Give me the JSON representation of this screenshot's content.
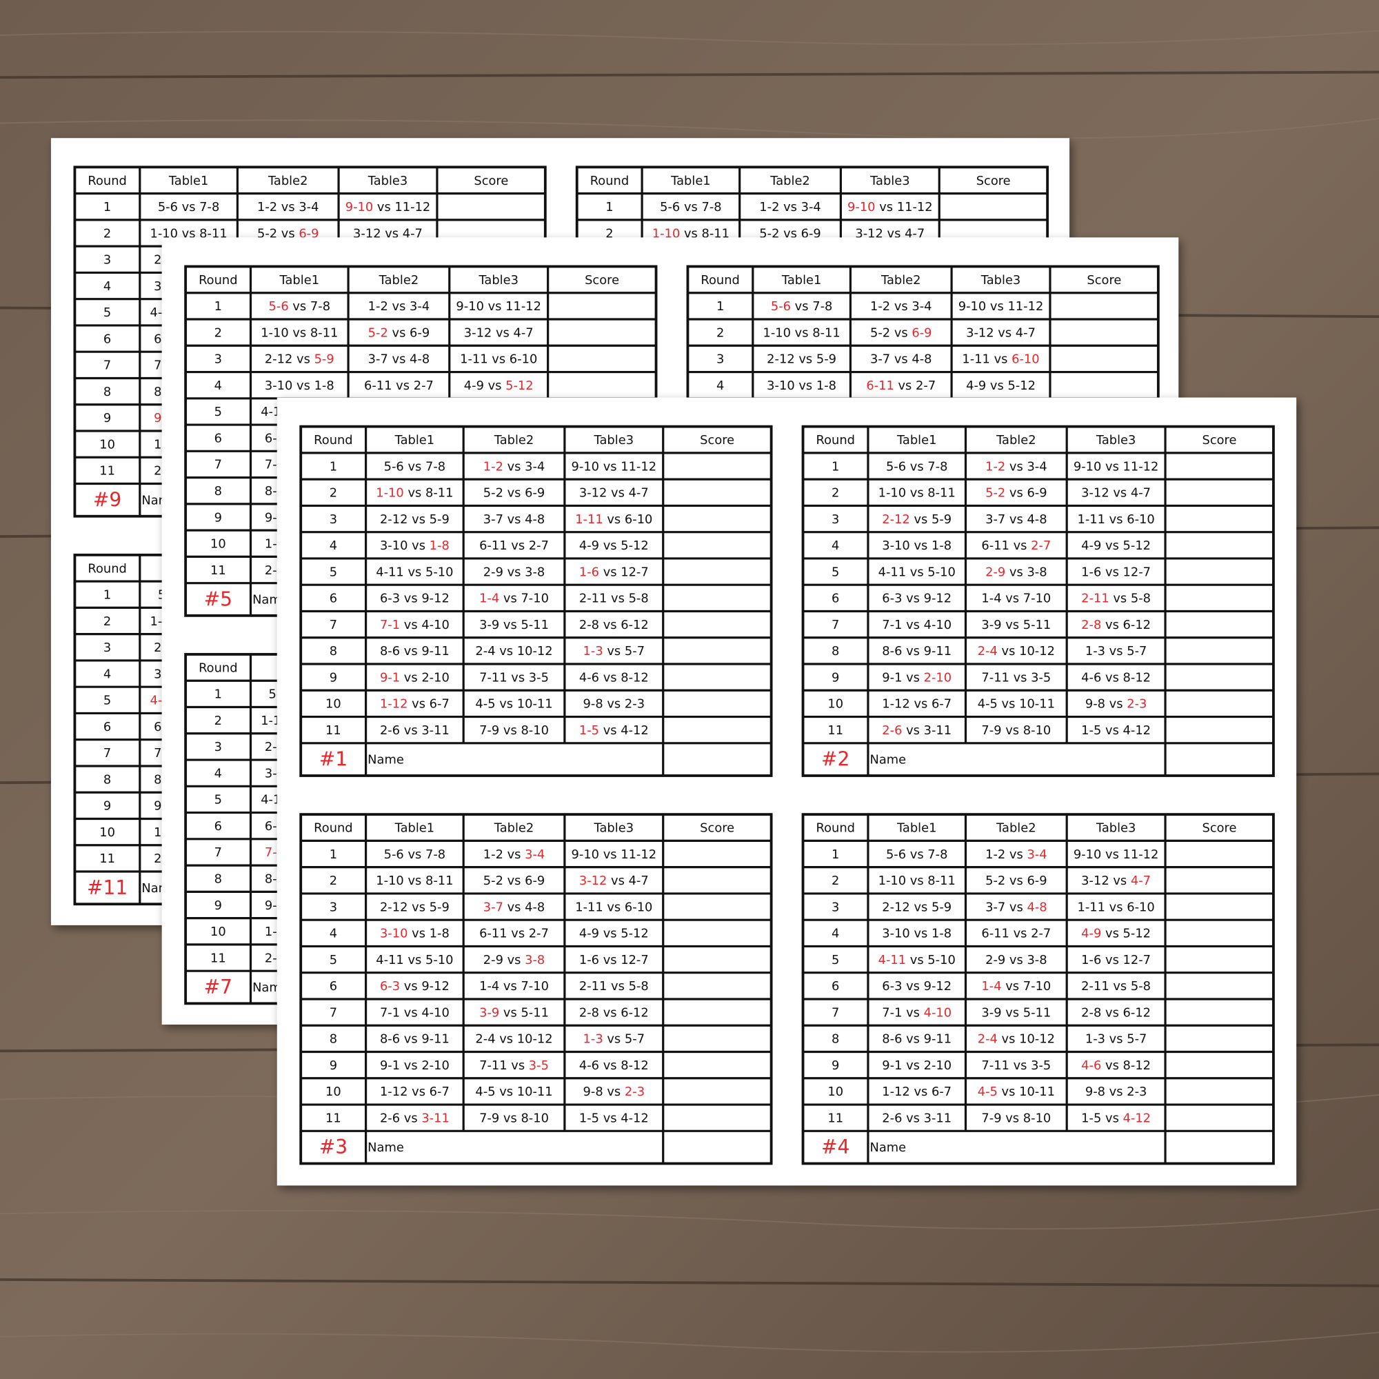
{
  "schedule": {
    "header": [
      "Round",
      "Table1",
      "Table2",
      "Table3",
      "Score"
    ],
    "rows": [
      [
        1,
        "5-6 vs 7-8",
        "1-2 vs 3-4",
        "9-10 vs 11-12"
      ],
      [
        2,
        "1-10 vs 8-11",
        "5-2 vs 6-9",
        "3-12 vs 4-7"
      ],
      [
        3,
        "2-12 vs 5-9",
        "3-7 vs 4-8",
        "1-11 vs 6-10"
      ],
      [
        4,
        "3-10 vs 1-8",
        "6-11 vs 2-7",
        "4-9 vs 5-12"
      ],
      [
        5,
        "4-11 vs 5-10",
        "2-9 vs 3-8",
        "1-6 vs 12-7"
      ],
      [
        6,
        "6-3 vs 9-12",
        "1-4 vs 7-10",
        "2-11 vs 5-8"
      ],
      [
        7,
        "7-1 vs 4-10",
        "3-9 vs 5-11",
        "2-8 vs 6-12"
      ],
      [
        8,
        "8-6 vs 9-11",
        "2-4 vs 10-12",
        "1-3 vs 5-7"
      ],
      [
        9,
        "9-1 vs 2-10",
        "7-11 vs 3-5",
        "4-6 vs 8-12"
      ],
      [
        10,
        "1-12 vs 6-7",
        "4-5 vs 10-11",
        "9-8 vs 2-3"
      ],
      [
        11,
        "2-6 vs 3-11",
        "7-9 vs 8-10",
        "1-5 vs 4-12"
      ]
    ],
    "name_label": "Name"
  },
  "highlight_color": "#e8262b",
  "sheets": [
    {
      "cards": [
        {
          "label": "#9",
          "player": 9
        },
        {
          "label": null,
          "player": 10
        },
        {
          "label": "#11",
          "player": 11
        }
      ]
    },
    {
      "cards": [
        {
          "label": "#5",
          "player": 5
        },
        {
          "label": null,
          "player": 6
        },
        {
          "label": "#7",
          "player": 7
        }
      ]
    },
    {
      "cards": [
        {
          "label": "#1",
          "player": 1
        },
        {
          "label": "#2",
          "player": 2
        },
        {
          "label": "#3",
          "player": 3
        },
        {
          "label": "#4",
          "player": 4
        }
      ]
    }
  ]
}
